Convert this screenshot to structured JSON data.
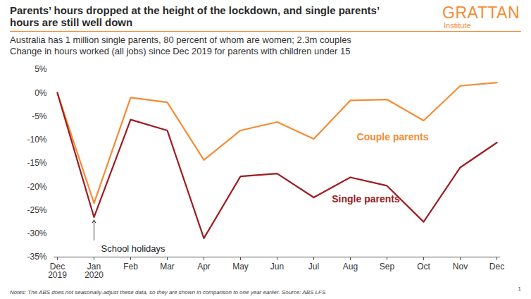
{
  "chart_data": {
    "type": "line",
    "title": "Parents’ hours dropped at the height of the lockdown, and single parents’\nhours are still well down",
    "subtitle": "Australia has 1 million single parents, 80 percent of whom are women; 2.3m couples\nChange in hours worked (all jobs) since Dec 2019 for parents with children under 15",
    "brand": [
      "GRATTAN",
      "Institute"
    ],
    "categories": [
      "Dec\n2019",
      "Jan\n2020",
      "Feb",
      "Mar",
      "Apr",
      "May",
      "Jun",
      "Jul",
      "Aug",
      "Sep",
      "Oct",
      "Nov",
      "Dec"
    ],
    "series": [
      {
        "name": "Couple parents",
        "color": "#F68B33",
        "values": [
          0,
          -23.5,
          -1,
          -2,
          -14.3,
          -8,
          -6.2,
          -9.8,
          -1.6,
          -1.4,
          -5.9,
          1.5,
          2.2
        ]
      },
      {
        "name": "Single parents",
        "color": "#9E1B20",
        "values": [
          0,
          -26.5,
          -5.7,
          -8,
          -31,
          -17.8,
          -17.2,
          -22.3,
          -18,
          -19.8,
          -27.5,
          -15.9,
          -10.6
        ]
      }
    ],
    "ylim": [
      -35,
      5
    ],
    "yticks": [
      {
        "value": 5,
        "label": "5%"
      },
      {
        "value": 0,
        "label": "0%"
      },
      {
        "value": -5,
        "label": "-5%"
      },
      {
        "value": -10,
        "label": "-10%"
      },
      {
        "value": -15,
        "label": "-15%"
      },
      {
        "value": -20,
        "label": "-20%"
      },
      {
        "value": -25,
        "label": "-25%"
      },
      {
        "value": -30,
        "label": "-30%"
      },
      {
        "value": -35,
        "label": "-35%"
      }
    ],
    "grid": false,
    "annotations": [
      {
        "text": "School holidays",
        "x": "Jan\n2020"
      }
    ],
    "note": "Notes: The ABS does not seasonally-adjust these data, so they are shown in comparison to one year earlier. Source: ABS LFS",
    "page_number": "1"
  }
}
